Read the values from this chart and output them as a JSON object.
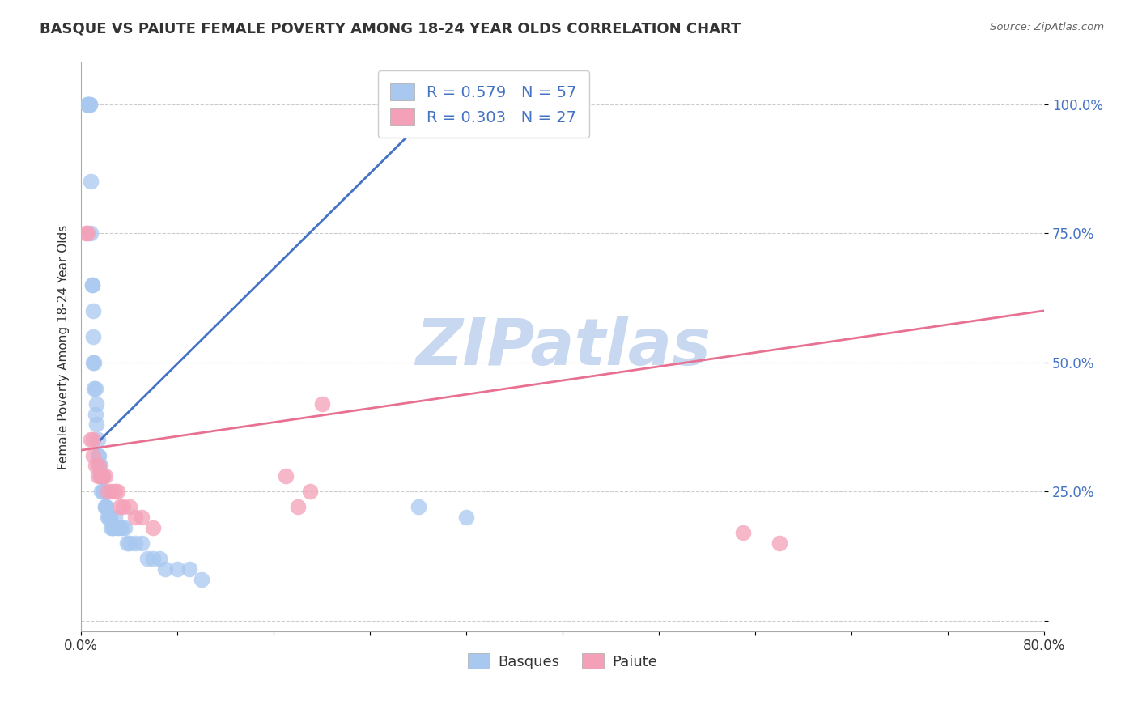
{
  "title": "BASQUE VS PAIUTE FEMALE POVERTY AMONG 18-24 YEAR OLDS CORRELATION CHART",
  "source": "Source: ZipAtlas.com",
  "ylabel": "Female Poverty Among 18-24 Year Olds",
  "xlim": [
    0.0,
    0.8
  ],
  "ylim": [
    -0.02,
    1.08
  ],
  "xticks": [
    0.0,
    0.08,
    0.16,
    0.24,
    0.32,
    0.4,
    0.48,
    0.56,
    0.64,
    0.72,
    0.8
  ],
  "xticklabels": [
    "0.0%",
    "",
    "",
    "",
    "",
    "",
    "",
    "",
    "",
    "",
    "80.0%"
  ],
  "ytick_positions": [
    0.0,
    0.25,
    0.5,
    0.75,
    1.0
  ],
  "ytick_labels": [
    "",
    "25.0%",
    "50.0%",
    "75.0%",
    "100.0%"
  ],
  "basque_color": "#A8C8F0",
  "paiute_color": "#F4A0B8",
  "basque_line_color": "#4472C4",
  "paiute_line_color": "#E87090",
  "legend_text_color": "#4472C4",
  "R_basque": 0.579,
  "N_basque": 57,
  "R_paiute": 0.303,
  "N_paiute": 27,
  "basque_x": [
    0.005,
    0.005,
    0.005,
    0.006,
    0.007,
    0.007,
    0.008,
    0.008,
    0.009,
    0.009,
    0.01,
    0.01,
    0.01,
    0.011,
    0.011,
    0.012,
    0.012,
    0.013,
    0.013,
    0.014,
    0.014,
    0.015,
    0.015,
    0.016,
    0.016,
    0.017,
    0.017,
    0.018,
    0.018,
    0.019,
    0.02,
    0.02,
    0.021,
    0.022,
    0.023,
    0.024,
    0.025,
    0.026,
    0.027,
    0.028,
    0.03,
    0.032,
    0.034,
    0.036,
    0.038,
    0.04,
    0.045,
    0.05,
    0.055,
    0.06,
    0.065,
    0.07,
    0.08,
    0.09,
    0.1,
    0.28,
    0.32
  ],
  "basque_y": [
    1.0,
    1.0,
    1.0,
    1.0,
    1.0,
    1.0,
    0.85,
    0.75,
    0.65,
    0.65,
    0.6,
    0.55,
    0.5,
    0.5,
    0.45,
    0.45,
    0.4,
    0.42,
    0.38,
    0.35,
    0.32,
    0.32,
    0.3,
    0.3,
    0.28,
    0.28,
    0.25,
    0.25,
    0.28,
    0.25,
    0.22,
    0.22,
    0.22,
    0.2,
    0.2,
    0.2,
    0.18,
    0.18,
    0.18,
    0.2,
    0.18,
    0.18,
    0.18,
    0.18,
    0.15,
    0.15,
    0.15,
    0.15,
    0.12,
    0.12,
    0.12,
    0.1,
    0.1,
    0.1,
    0.08,
    0.22,
    0.2
  ],
  "paiute_x": [
    0.004,
    0.005,
    0.008,
    0.01,
    0.01,
    0.012,
    0.014,
    0.015,
    0.016,
    0.018,
    0.02,
    0.022,
    0.025,
    0.028,
    0.03,
    0.032,
    0.035,
    0.04,
    0.045,
    0.05,
    0.06,
    0.17,
    0.18,
    0.19,
    0.2,
    0.55,
    0.58
  ],
  "paiute_y": [
    0.75,
    0.75,
    0.35,
    0.35,
    0.32,
    0.3,
    0.28,
    0.3,
    0.28,
    0.28,
    0.28,
    0.25,
    0.25,
    0.25,
    0.25,
    0.22,
    0.22,
    0.22,
    0.2,
    0.2,
    0.18,
    0.28,
    0.22,
    0.25,
    0.42,
    0.17,
    0.15
  ],
  "blue_trend_x0": 0.016,
  "blue_trend_y0": 0.35,
  "blue_trend_x1": 0.32,
  "blue_trend_y1": 1.05,
  "pink_trend_x0": 0.0,
  "pink_trend_y0": 0.33,
  "pink_trend_x1": 0.8,
  "pink_trend_y1": 0.6,
  "grid_color": "#CCCCCC",
  "background_color": "#FFFFFF",
  "watermark_text": "ZIPatlas",
  "watermark_color": "#C8D8F0"
}
